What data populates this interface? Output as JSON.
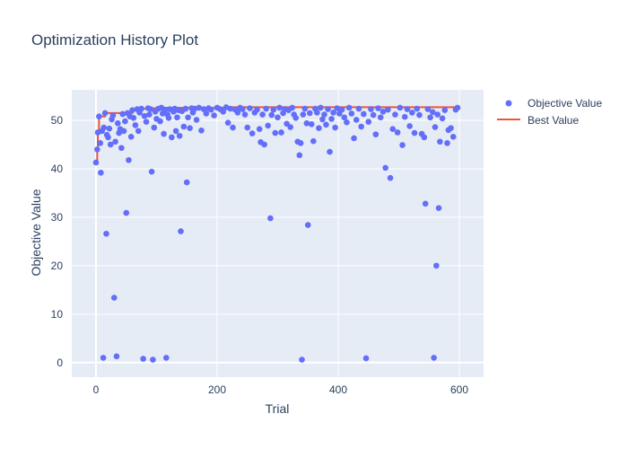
{
  "chart_data": {
    "type": "scatter",
    "title": "Optimization History Plot",
    "xlabel": "Trial",
    "ylabel": "Objective Value",
    "xlim": [
      -40,
      640
    ],
    "ylim": [
      -3,
      56.3
    ],
    "xticks": [
      0,
      200,
      400,
      600
    ],
    "yticks": [
      0,
      10,
      20,
      30,
      40,
      50
    ],
    "grid": true,
    "legend_position": "top-right",
    "series": [
      {
        "name": "Objective Value",
        "type": "scatter",
        "color": "#636efa",
        "points": [
          [
            0,
            41.3
          ],
          [
            2,
            44
          ],
          [
            3,
            47.5
          ],
          [
            5,
            50.8
          ],
          [
            7,
            45.3
          ],
          [
            8,
            39.2
          ],
          [
            10,
            47.8
          ],
          [
            12,
            1
          ],
          [
            13,
            48.5
          ],
          [
            15,
            51.5
          ],
          [
            17,
            26.6
          ],
          [
            18,
            47
          ],
          [
            20,
            46.5
          ],
          [
            22,
            48.3
          ],
          [
            24,
            45
          ],
          [
            26,
            50.2
          ],
          [
            28,
            51
          ],
          [
            30,
            13.4
          ],
          [
            32,
            45.6
          ],
          [
            34,
            1.3
          ],
          [
            36,
            49.4
          ],
          [
            38,
            47.4
          ],
          [
            40,
            48.2
          ],
          [
            42,
            44.3
          ],
          [
            44,
            51.3
          ],
          [
            46,
            47.8
          ],
          [
            48,
            49.8
          ],
          [
            50,
            30.9
          ],
          [
            52,
            51.5
          ],
          [
            54,
            41.8
          ],
          [
            56,
            50.8
          ],
          [
            58,
            46.6
          ],
          [
            60,
            52.1
          ],
          [
            62,
            50.5
          ],
          [
            65,
            49
          ],
          [
            68,
            52.3
          ],
          [
            70,
            47.8
          ],
          [
            72,
            51.6
          ],
          [
            75,
            52.4
          ],
          [
            78,
            0.8
          ],
          [
            80,
            50.9
          ],
          [
            83,
            49.7
          ],
          [
            86,
            52.5
          ],
          [
            88,
            51.2
          ],
          [
            90,
            52.3
          ],
          [
            92,
            39.4
          ],
          [
            94,
            0.6
          ],
          [
            96,
            48.5
          ],
          [
            98,
            51.8
          ],
          [
            100,
            50.3
          ],
          [
            103,
            52.4
          ],
          [
            106,
            49.8
          ],
          [
            108,
            52.6
          ],
          [
            110,
            51.4
          ],
          [
            112,
            47.2
          ],
          [
            114,
            52.2
          ],
          [
            116,
            1
          ],
          [
            118,
            51.2
          ],
          [
            120,
            50.5
          ],
          [
            122,
            52.3
          ],
          [
            125,
            46.5
          ],
          [
            128,
            51.8
          ],
          [
            130,
            52.4
          ],
          [
            132,
            47.8
          ],
          [
            134,
            50.6
          ],
          [
            136,
            52.1
          ],
          [
            138,
            46.8
          ],
          [
            140,
            27.1
          ],
          [
            142,
            51.9
          ],
          [
            145,
            48.7
          ],
          [
            148,
            52.4
          ],
          [
            150,
            37.2
          ],
          [
            152,
            50.6
          ],
          [
            155,
            48.4
          ],
          [
            158,
            52.5
          ],
          [
            160,
            51.6
          ],
          [
            163,
            52.4
          ],
          [
            166,
            50.1
          ],
          [
            170,
            52.6
          ],
          [
            174,
            47.9
          ],
          [
            178,
            52.3
          ],
          [
            182,
            51.4
          ],
          [
            186,
            52.5
          ],
          [
            190,
            52.2
          ],
          [
            195,
            51
          ],
          [
            200,
            52.6
          ],
          [
            205,
            52.3
          ],
          [
            210,
            51.8
          ],
          [
            215,
            52.7
          ],
          [
            218,
            49.5
          ],
          [
            222,
            52.4
          ],
          [
            226,
            48.5
          ],
          [
            230,
            52.2
          ],
          [
            234,
            51.6
          ],
          [
            238,
            52.6
          ],
          [
            242,
            52.3
          ],
          [
            246,
            51.2
          ],
          [
            250,
            48.5
          ],
          [
            254,
            52.5
          ],
          [
            258,
            47.3
          ],
          [
            262,
            51.6
          ],
          [
            266,
            52.2
          ],
          [
            270,
            48.2
          ],
          [
            272,
            45.5
          ],
          [
            275,
            51.2
          ],
          [
            278,
            45
          ],
          [
            281,
            52.4
          ],
          [
            284,
            48.9
          ],
          [
            288,
            29.8
          ],
          [
            290,
            51.1
          ],
          [
            293,
            52.2
          ],
          [
            296,
            47.4
          ],
          [
            300,
            50.6
          ],
          [
            303,
            52.6
          ],
          [
            306,
            47.5
          ],
          [
            309,
            51.5
          ],
          [
            312,
            52.3
          ],
          [
            315,
            49.3
          ],
          [
            318,
            52.1
          ],
          [
            321,
            48.6
          ],
          [
            324,
            52.6
          ],
          [
            327,
            51.2
          ],
          [
            330,
            50.5
          ],
          [
            333,
            45.6
          ],
          [
            336,
            42.8
          ],
          [
            338,
            45.3
          ],
          [
            340,
            0.6
          ],
          [
            342,
            51.2
          ],
          [
            345,
            52.4
          ],
          [
            348,
            49.4
          ],
          [
            350,
            28.4
          ],
          [
            353,
            51.5
          ],
          [
            356,
            49.2
          ],
          [
            359,
            45.7
          ],
          [
            362,
            52.4
          ],
          [
            365,
            51.6
          ],
          [
            368,
            48.4
          ],
          [
            371,
            52.6
          ],
          [
            374,
            50.2
          ],
          [
            377,
            51.2
          ],
          [
            380,
            49.1
          ],
          [
            383,
            52.3
          ],
          [
            386,
            43.5
          ],
          [
            389,
            50.3
          ],
          [
            392,
            51.6
          ],
          [
            395,
            48.5
          ],
          [
            398,
            52.5
          ],
          [
            402,
            51.4
          ],
          [
            406,
            52.2
          ],
          [
            410,
            50.6
          ],
          [
            414,
            49.6
          ],
          [
            418,
            52.6
          ],
          [
            422,
            51.4
          ],
          [
            426,
            46.3
          ],
          [
            430,
            50.1
          ],
          [
            434,
            52.4
          ],
          [
            438,
            48.7
          ],
          [
            442,
            51.3
          ],
          [
            446,
            0.9
          ],
          [
            450,
            49.7
          ],
          [
            454,
            52.3
          ],
          [
            458,
            51.1
          ],
          [
            462,
            47.1
          ],
          [
            466,
            52.5
          ],
          [
            470,
            50.6
          ],
          [
            474,
            51.8
          ],
          [
            478,
            40.2
          ],
          [
            482,
            52.2
          ],
          [
            486,
            38.1
          ],
          [
            490,
            48.2
          ],
          [
            494,
            51.2
          ],
          [
            498,
            47.5
          ],
          [
            502,
            52.6
          ],
          [
            506,
            44.9
          ],
          [
            510,
            50.7
          ],
          [
            514,
            52.3
          ],
          [
            518,
            48.8
          ],
          [
            522,
            51.6
          ],
          [
            526,
            47.4
          ],
          [
            530,
            52.4
          ],
          [
            534,
            51.1
          ],
          [
            538,
            47.2
          ],
          [
            542,
            46.5
          ],
          [
            544,
            32.8
          ],
          [
            548,
            52.3
          ],
          [
            552,
            50.6
          ],
          [
            556,
            51.7
          ],
          [
            558,
            1
          ],
          [
            560,
            48.6
          ],
          [
            562,
            20
          ],
          [
            564,
            51.2
          ],
          [
            566,
            31.9
          ],
          [
            568,
            45.6
          ],
          [
            572,
            50.4
          ],
          [
            576,
            52.1
          ],
          [
            580,
            45.3
          ],
          [
            582,
            48
          ],
          [
            586,
            48.4
          ],
          [
            590,
            46.6
          ],
          [
            594,
            52.2
          ],
          [
            597,
            52.6
          ]
        ]
      },
      {
        "name": "Best Value",
        "type": "line",
        "color": "#ef553b",
        "points": [
          [
            0,
            41.3
          ],
          [
            2,
            44
          ],
          [
            3,
            47.5
          ],
          [
            5,
            50.8
          ],
          [
            15,
            51.5
          ],
          [
            60,
            52.1
          ],
          [
            68,
            52.3
          ],
          [
            75,
            52.4
          ],
          [
            86,
            52.5
          ],
          [
            108,
            52.6
          ],
          [
            215,
            52.7
          ],
          [
            597,
            52.7
          ]
        ]
      }
    ]
  }
}
